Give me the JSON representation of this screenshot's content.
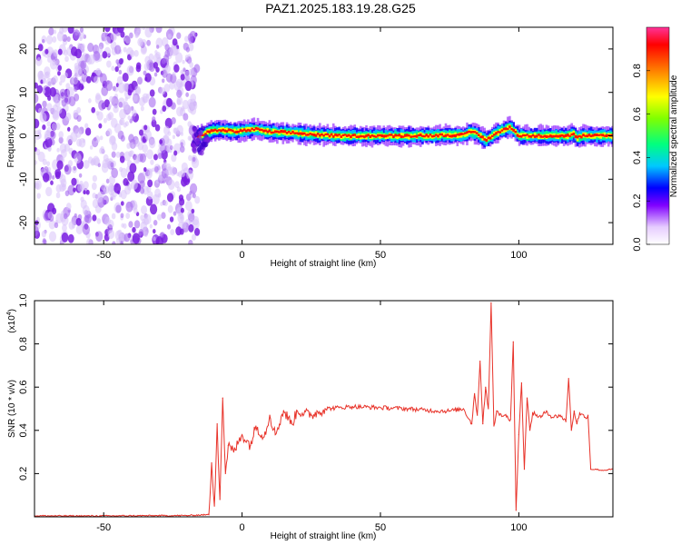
{
  "title": "PAZ1.2025.183.19.28.G25",
  "colors": {
    "snr_line": "#e8332a",
    "spectrogram_noise": "#7a1fe0",
    "axis": "#000000"
  },
  "chart_data": [
    {
      "type": "heatmap",
      "xlabel": "Height of straight line (km)",
      "ylabel": "Frequency (Hz)",
      "xlim": [
        -75,
        134
      ],
      "ylim": [
        -25,
        25
      ],
      "x_ticks": [
        -50,
        0,
        50,
        100
      ],
      "y_ticks": [
        -20,
        -10,
        0,
        10,
        20
      ],
      "colorbar": {
        "label": "Normalized spectral amplitude",
        "range": [
          0,
          1
        ],
        "ticks": [
          0.0,
          0.2,
          0.4,
          0.6,
          0.8
        ],
        "colormap": [
          "#ffffff",
          "#e6ccff",
          "#8000ff",
          "#0000ff",
          "#00c8ff",
          "#00ff80",
          "#80ff00",
          "#ffff00",
          "#ff8000",
          "#ff0000",
          "#ff3399"
        ]
      },
      "noise_region_x": [
        -75,
        -16
      ],
      "signal_center": [
        [
          -15,
          0.0
        ],
        [
          -12,
          1.0
        ],
        [
          -8,
          1.3
        ],
        [
          -2,
          1.0
        ],
        [
          5,
          1.5
        ],
        [
          10,
          0.9
        ],
        [
          18,
          0.7
        ],
        [
          25,
          0.3
        ],
        [
          35,
          0.0
        ],
        [
          60,
          0.0
        ],
        [
          80,
          0.2
        ],
        [
          83,
          1.0
        ],
        [
          85,
          0.5
        ],
        [
          88,
          -1.0
        ],
        [
          92,
          0.6
        ],
        [
          95,
          1.5
        ],
        [
          97,
          2.0
        ],
        [
          100,
          0.0
        ],
        [
          118,
          0.0
        ],
        [
          120,
          0.5
        ],
        [
          121,
          -0.5
        ],
        [
          123,
          0.0
        ],
        [
          134,
          0.0
        ]
      ]
    },
    {
      "type": "line",
      "xlabel": "Height of straight line (km)",
      "ylabel": "SNR (10 * v/v)",
      "y_scale_note": "(x10",
      "y_scale_exp": "4",
      "y_scale_close": ")",
      "xlim": [
        -75,
        134
      ],
      "ylim": [
        0,
        1.0
      ],
      "x_ticks": [
        -50,
        0,
        50,
        100
      ],
      "y_ticks": [
        0.2,
        0.4,
        0.6,
        0.8,
        1.0
      ],
      "series": [
        {
          "x": [
            -75,
            -60,
            -40,
            -20,
            -12,
            -11,
            -10,
            -9,
            -8,
            -7,
            -6,
            -5,
            -3,
            0,
            3,
            5,
            8,
            10,
            12,
            15,
            18,
            20,
            25,
            30,
            35,
            40,
            50,
            60,
            70,
            75,
            80,
            83,
            84,
            85,
            86,
            87,
            88,
            89,
            90,
            91,
            92,
            93,
            95,
            97,
            98,
            99,
            100,
            101,
            102,
            103,
            104,
            105,
            108,
            110,
            112,
            115,
            117,
            118,
            119,
            120,
            121,
            122,
            124,
            125,
            126,
            128,
            130,
            134
          ],
          "y": [
            0.005,
            0.004,
            0.005,
            0.006,
            0.01,
            0.25,
            0.05,
            0.43,
            0.08,
            0.55,
            0.2,
            0.33,
            0.3,
            0.38,
            0.33,
            0.42,
            0.37,
            0.47,
            0.38,
            0.49,
            0.43,
            0.49,
            0.47,
            0.5,
            0.505,
            0.51,
            0.505,
            0.5,
            0.49,
            0.49,
            0.5,
            0.43,
            0.57,
            0.47,
            0.72,
            0.43,
            0.6,
            0.5,
            0.99,
            0.42,
            0.49,
            0.47,
            0.47,
            0.45,
            0.81,
            0.03,
            0.38,
            0.62,
            0.22,
            0.55,
            0.4,
            0.48,
            0.46,
            0.49,
            0.46,
            0.47,
            0.44,
            0.64,
            0.4,
            0.49,
            0.43,
            0.48,
            0.46,
            0.47,
            0.22,
            0.22,
            0.215,
            0.22
          ]
        }
      ]
    }
  ]
}
